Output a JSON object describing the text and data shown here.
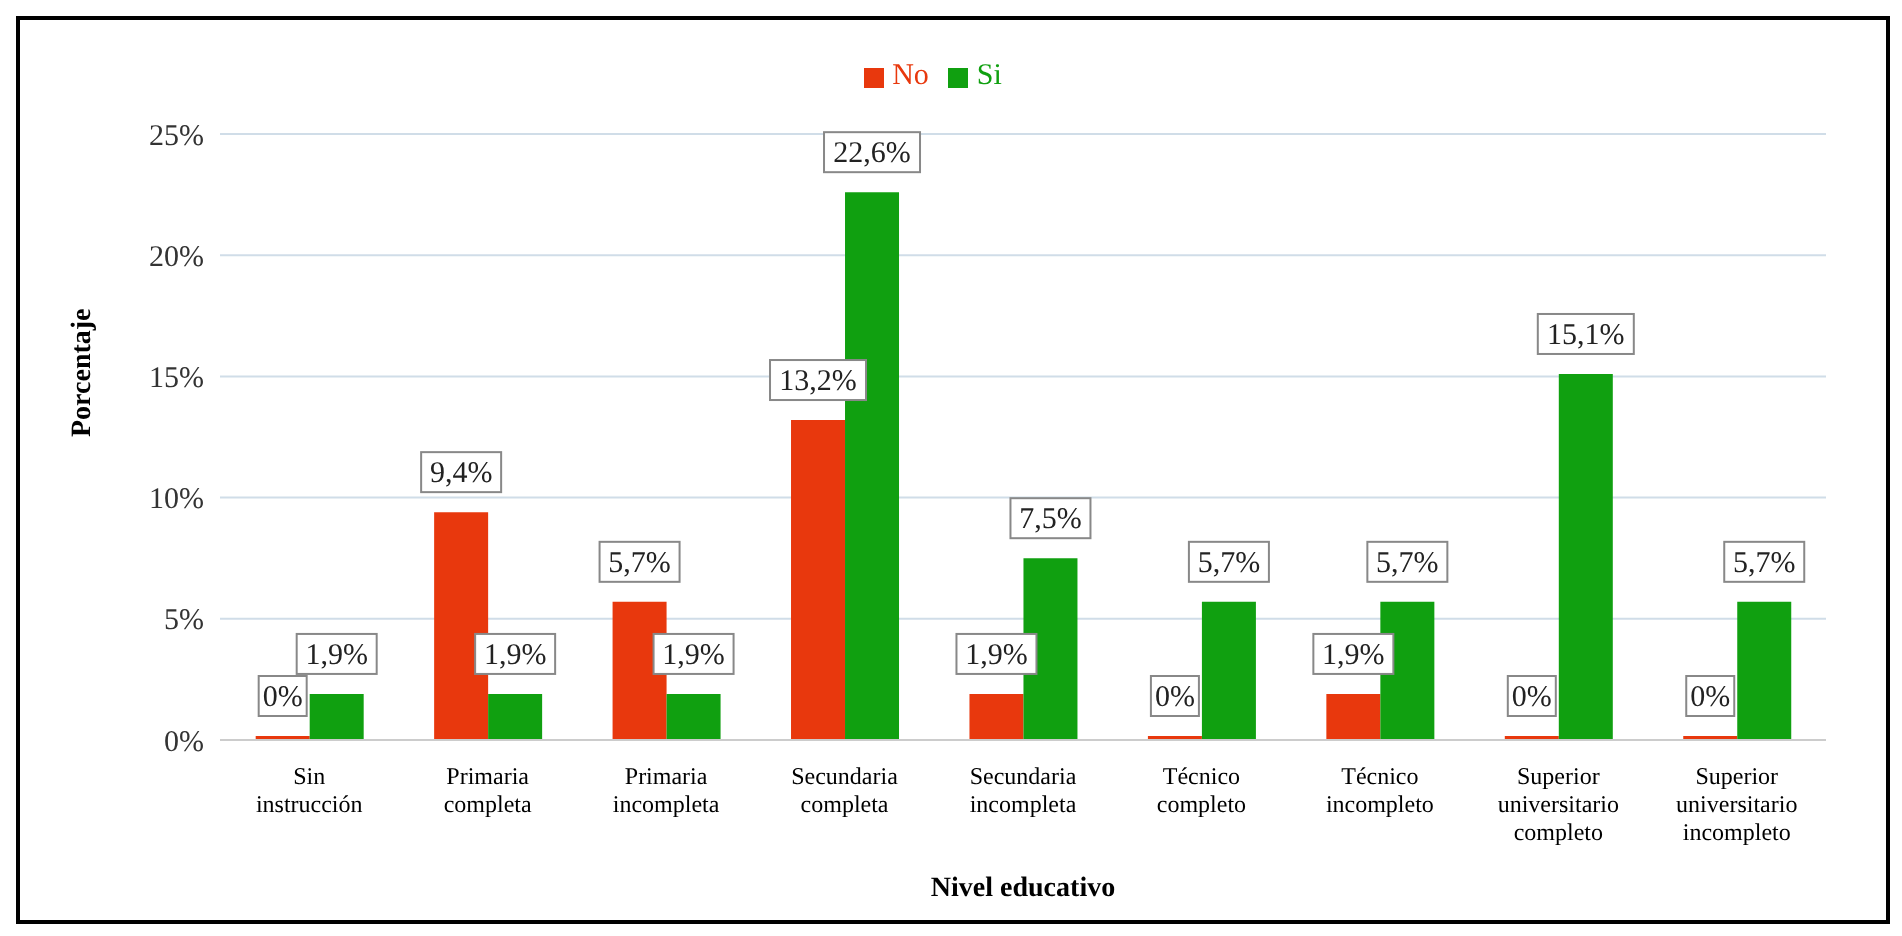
{
  "chart_data": {
    "type": "bar",
    "xlabel": "Nivel educativo",
    "ylabel": "Porcentaje",
    "categories": [
      "Sin instrucción",
      "Primaria completa",
      "Primaria incompleta",
      "Secundaria completa",
      "Secundaria incompleta",
      "Técnico completo",
      "Técnico incompleto",
      "Superior universitario completo",
      "Superior universitario incompleto"
    ],
    "series": [
      {
        "name": "No",
        "color": "#e8380d",
        "values": [
          0,
          9.4,
          5.7,
          13.2,
          1.9,
          0,
          1.9,
          0,
          0
        ],
        "value_labels": [
          "0%",
          "9,4%",
          "5,7%",
          "13,2%",
          "1,9%",
          "0%",
          "1,9%",
          "0%",
          "0%"
        ]
      },
      {
        "name": "Si",
        "color": "#10a010",
        "values": [
          1.9,
          1.9,
          1.9,
          22.6,
          7.5,
          5.7,
          5.7,
          15.1,
          5.7
        ],
        "value_labels": [
          "1,9%",
          "1,9%",
          "1,9%",
          "22,6%",
          "7,5%",
          "5,7%",
          "5,7%",
          "15,1%",
          "5,7%"
        ]
      }
    ],
    "ylim": [
      0,
      25
    ],
    "yticks": [
      {
        "value": 0,
        "label": "0%"
      },
      {
        "value": 5,
        "label": "5%"
      },
      {
        "value": 10,
        "label": "10%"
      },
      {
        "value": 15,
        "label": "15%"
      },
      {
        "value": 20,
        "label": "20%"
      },
      {
        "value": 25,
        "label": "25%"
      }
    ],
    "grid": "y",
    "legend": "top"
  }
}
